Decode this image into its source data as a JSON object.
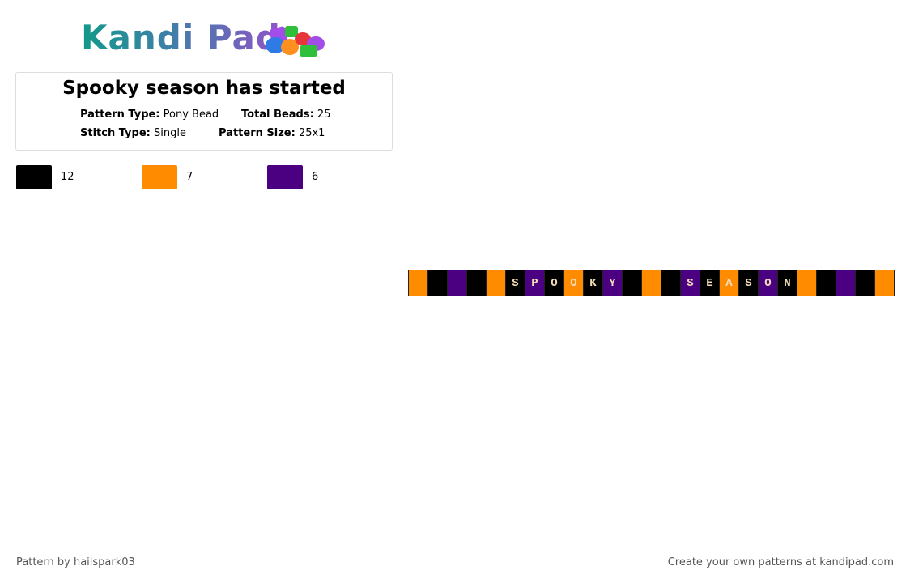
{
  "logo": "Kandi Pad",
  "title": "Spooky season has started",
  "info": [
    {
      "label": "Pattern Type:",
      "value": "Pony Bead"
    },
    {
      "label": "Total Beads:",
      "value": 25
    },
    {
      "label": "Stitch Type:",
      "value": "Single"
    },
    {
      "label": "Pattern Size:",
      "value": "25x1"
    }
  ],
  "legend": [
    {
      "color": "#000000",
      "count": 12
    },
    {
      "color": "#ff8c00",
      "count": 7
    },
    {
      "color": "#4b0082",
      "count": 6
    }
  ],
  "beads": [
    {
      "color": "#ff8c00"
    },
    {
      "color": "#000000"
    },
    {
      "color": "#4b0082"
    },
    {
      "color": "#000000"
    },
    {
      "color": "#ff8c00"
    },
    {
      "color": "#000000",
      "letter": "S"
    },
    {
      "color": "#4b0082",
      "letter": "P"
    },
    {
      "color": "#000000",
      "letter": "O"
    },
    {
      "color": "#ff8c00",
      "letter": "O"
    },
    {
      "color": "#000000",
      "letter": "K"
    },
    {
      "color": "#4b0082",
      "letter": "Y"
    },
    {
      "color": "#000000"
    },
    {
      "color": "#ff8c00"
    },
    {
      "color": "#000000"
    },
    {
      "color": "#4b0082",
      "letter": "S"
    },
    {
      "color": "#000000",
      "letter": "E"
    },
    {
      "color": "#ff8c00",
      "letter": "A"
    },
    {
      "color": "#000000",
      "letter": "S"
    },
    {
      "color": "#4b0082",
      "letter": "O"
    },
    {
      "color": "#000000",
      "letter": "N"
    },
    {
      "color": "#ff8c00"
    },
    {
      "color": "#000000"
    },
    {
      "color": "#4b0082"
    },
    {
      "color": "#000000"
    },
    {
      "color": "#ff8c00"
    }
  ],
  "footer": {
    "left": "Pattern by hailspark03",
    "right": "Create your own patterns at kandipad.com"
  }
}
